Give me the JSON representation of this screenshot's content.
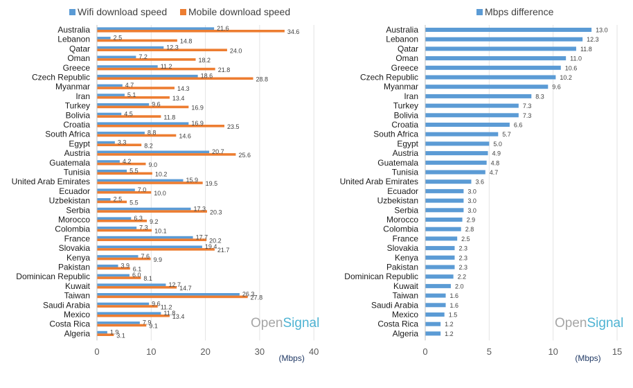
{
  "chart_data": [
    {
      "type": "bar",
      "orientation": "horizontal",
      "categories": [
        "Australia",
        "Lebanon",
        "Qatar",
        "Oman",
        "Greece",
        "Czech Republic",
        "Myanmar",
        "Iran",
        "Turkey",
        "Bolivia",
        "Croatia",
        "South Africa",
        "Egypt",
        "Austria",
        "Guatemala",
        "Tunisia",
        "United Arab Emirates",
        "Ecuador",
        "Uzbekistan",
        "Serbia",
        "Morocco",
        "Colombia",
        "France",
        "Slovakia",
        "Kenya",
        "Pakistan",
        "Dominican Republic",
        "Kuwait",
        "Taiwan",
        "Saudi Arabia",
        "Mexico",
        "Costa Rica",
        "Algeria"
      ],
      "series": [
        {
          "name": "Wifi download speed",
          "color": "#5b9bd5",
          "values": [
            21.6,
            2.5,
            12.3,
            7.2,
            11.2,
            18.6,
            4.7,
            5.1,
            9.6,
            4.5,
            16.9,
            8.8,
            3.3,
            20.7,
            4.2,
            5.5,
            15.9,
            7.0,
            2.5,
            17.3,
            6.3,
            7.3,
            17.7,
            19.4,
            7.6,
            3.9,
            6.0,
            12.7,
            26.3,
            9.6,
            11.8,
            7.9,
            1.9
          ]
        },
        {
          "name": "Mobile download speed",
          "color": "#ed7d31",
          "values": [
            34.6,
            14.8,
            24.0,
            18.2,
            21.8,
            28.8,
            14.3,
            13.4,
            16.9,
            11.8,
            23.5,
            14.6,
            8.2,
            25.6,
            9.0,
            10.2,
            19.5,
            10.0,
            5.5,
            20.3,
            9.2,
            10.1,
            20.2,
            21.7,
            9.9,
            6.1,
            8.1,
            14.7,
            27.8,
            11.2,
            13.4,
            9.1,
            3.1
          ]
        }
      ],
      "wifi_labels": [
        "21.6",
        "2.5",
        "12.3",
        "7.2",
        "11.2",
        "18.6",
        "4.7",
        "5.1",
        "9.6",
        "4.5",
        "16.9",
        "8.8",
        "3.3",
        "20.7",
        "4.2",
        "5.5",
        "15.9",
        "7.0",
        "2.5",
        "17.3",
        "6.3",
        "7.3",
        "17.7",
        "19.4",
        "7.6",
        "3.9",
        "6.0",
        "12.7",
        "26.3",
        "9.6",
        "11.8",
        "7.9",
        "1.9"
      ],
      "mobile_labels": [
        "34.6",
        "14.8",
        "24.0",
        "18.2",
        "21.8",
        "28.8",
        "14.3",
        "13.4",
        "16.9",
        "11.8",
        "23.5",
        "14.6",
        "8.2",
        "25.6",
        "9.0",
        "10.2",
        "19.5",
        "10.0",
        "5.5",
        "20.3",
        "9.2",
        "10.1",
        "20.2",
        "21.7",
        "9.9",
        "6.1",
        "8.1",
        "14.7",
        "27.8",
        "11.2",
        "13.4",
        "9.1",
        "3.1"
      ],
      "xlim": [
        0,
        40
      ],
      "xticks": [
        0,
        10,
        20,
        30,
        40
      ],
      "xtick_labels": [
        "0",
        "10",
        "20",
        "30",
        "40"
      ],
      "xlabel": "(Mbps)",
      "grid": true,
      "legend": "top",
      "watermark": {
        "part1": "Open",
        "part2": "Signal"
      }
    },
    {
      "type": "bar",
      "orientation": "horizontal",
      "categories": [
        "Australia",
        "Lebanon",
        "Qatar",
        "Oman",
        "Greece",
        "Czech Republic",
        "Myanmar",
        "Iran",
        "Turkey",
        "Bolivia",
        "Croatia",
        "South Africa",
        "Egypt",
        "Austria",
        "Guatemala",
        "Tunisia",
        "United Arab Emirates",
        "Ecuador",
        "Uzbekistan",
        "Serbia",
        "Morocco",
        "Colombia",
        "France",
        "Slovakia",
        "Kenya",
        "Pakistan",
        "Dominican Republic",
        "Kuwait",
        "Taiwan",
        "Saudi Arabia",
        "Mexico",
        "Costa Rica",
        "Algeria"
      ],
      "series": [
        {
          "name": "Mbps difference",
          "color": "#5b9bd5",
          "values": [
            13.0,
            12.3,
            11.8,
            11.0,
            10.6,
            10.2,
            9.6,
            8.3,
            7.3,
            7.3,
            6.6,
            5.7,
            5.0,
            4.9,
            4.8,
            4.7,
            3.6,
            3.0,
            3.0,
            3.0,
            2.9,
            2.8,
            2.5,
            2.3,
            2.3,
            2.3,
            2.2,
            2.0,
            1.6,
            1.6,
            1.5,
            1.2,
            1.2
          ]
        }
      ],
      "value_labels": [
        "13.0",
        "12.3",
        "11.8",
        "11.0",
        "10.6",
        "10.2",
        "9.6",
        "8.3",
        "7.3",
        "7.3",
        "6.6",
        "5.7",
        "5.0",
        "4.9",
        "4.8",
        "4.7",
        "3.6",
        "3.0",
        "3.0",
        "3.0",
        "2.9",
        "2.8",
        "2.5",
        "2.3",
        "2.3",
        "2.3",
        "2.2",
        "2.0",
        "1.6",
        "1.6",
        "1.5",
        "1.2",
        "1.2"
      ],
      "xlim": [
        0,
        15
      ],
      "xticks": [
        0,
        5,
        10,
        15
      ],
      "xtick_labels": [
        "0",
        "5",
        "10",
        "15"
      ],
      "xlabel": "(Mbps)",
      "grid": true,
      "legend": "top",
      "watermark": {
        "part1": "Open",
        "part2": "Signal"
      }
    }
  ]
}
